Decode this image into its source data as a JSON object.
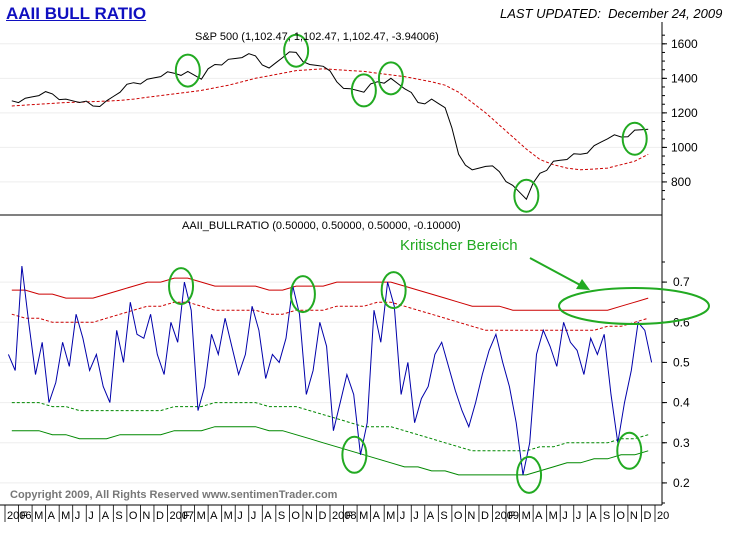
{
  "header": {
    "title": "AAII BULL RATIO",
    "last_updated_label": "LAST UPDATED:",
    "last_updated_date": "December 24, 2009"
  },
  "copyright": "Copyright 2009, All Rights Reserved   www.sentimenTrader.com",
  "annotation": {
    "text": "Kritischer Bereich"
  },
  "colors": {
    "price": "#000000",
    "moving_average": "#cc0000",
    "ratio": "#0000aa",
    "upper_band": "#cc0000",
    "lower_band": "#008800",
    "highlight": "#22aa22",
    "annotation_text": "#22aa22"
  },
  "chart_data": [
    {
      "type": "line",
      "title": "S&P 500 (1,102.47, 1,102.47, 1,102.47, -3.94006)",
      "ylim": [
        620,
        1680
      ],
      "y_ticks": [
        800,
        1000,
        1200,
        1400,
        1600
      ],
      "axis_side": "right",
      "x": [
        "2006-01",
        "2006-02",
        "2006-03",
        "2006-04",
        "2006-05",
        "2006-06",
        "2006-07",
        "2006-08",
        "2006-09",
        "2006-10",
        "2006-11",
        "2006-12",
        "2007-01",
        "2007-02",
        "2007-03",
        "2007-04",
        "2007-05",
        "2007-06",
        "2007-07",
        "2007-08",
        "2007-09",
        "2007-10",
        "2007-11",
        "2007-12",
        "2008-01",
        "2008-02",
        "2008-03",
        "2008-04",
        "2008-05",
        "2008-06",
        "2008-07",
        "2008-08",
        "2008-09",
        "2008-10",
        "2008-11",
        "2008-12",
        "2009-01",
        "2009-02",
        "2009-03",
        "2009-04",
        "2009-05",
        "2009-06",
        "2009-07",
        "2009-08",
        "2009-09",
        "2009-10",
        "2009-11",
        "2009-12"
      ],
      "series": [
        {
          "name": "",
          "values": [
            1270,
            1285,
            1300,
            1310,
            1280,
            1260,
            1240,
            1270,
            1320,
            1375,
            1395,
            1410,
            1430,
            1440,
            1395,
            1480,
            1510,
            1520,
            1530,
            1460,
            1520,
            1550,
            1480,
            1470,
            1380,
            1340,
            1320,
            1380,
            1400,
            1340,
            1260,
            1280,
            1230,
            960,
            870,
            890,
            860,
            780,
            700,
            850,
            920,
            930,
            960,
            1010,
            1050,
            1060,
            1100,
            1105
          ]
        },
        {
          "name": "",
          "values": [
            1240,
            1245,
            1250,
            1255,
            1260,
            1262,
            1265,
            1268,
            1272,
            1280,
            1290,
            1300,
            1310,
            1320,
            1330,
            1345,
            1360,
            1380,
            1400,
            1415,
            1430,
            1445,
            1450,
            1455,
            1450,
            1445,
            1440,
            1430,
            1420,
            1410,
            1395,
            1380,
            1360,
            1320,
            1260,
            1200,
            1130,
            1060,
            990,
            930,
            900,
            880,
            870,
            875,
            880,
            900,
            920,
            960
          ]
        }
      ],
      "highlights": [
        {
          "x": "2007-02",
          "y": 1445
        },
        {
          "x": "2007-10",
          "y": 1560
        },
        {
          "x": "2008-03",
          "y": 1330
        },
        {
          "x": "2008-05",
          "y": 1400
        },
        {
          "x": "2009-03",
          "y": 720
        },
        {
          "x": "2009-11",
          "y": 1050
        }
      ]
    },
    {
      "type": "line",
      "title": "AAII_BULLRATIO (0.50000, 0.50000, 0.50000, -0.10000)",
      "ylim": [
        0.15,
        0.75
      ],
      "y_ticks": [
        0.2,
        0.3,
        0.4,
        0.5,
        0.6,
        0.7
      ],
      "axis_side": "right",
      "x_tick_labels": [
        "2006",
        "F",
        "M",
        "A",
        "M",
        "J",
        "J",
        "A",
        "S",
        "O",
        "N",
        "D",
        "2007",
        "F",
        "M",
        "A",
        "M",
        "J",
        "J",
        "A",
        "S",
        "O",
        "N",
        "D",
        "2008",
        "F",
        "M",
        "A",
        "M",
        "J",
        "J",
        "A",
        "S",
        "O",
        "N",
        "D",
        "2009",
        "F",
        "M",
        "A",
        "M",
        "J",
        "J",
        "A",
        "S",
        "O",
        "N",
        "D",
        "20"
      ],
      "ratio_values": [
        0.52,
        0.74,
        0.47,
        0.4,
        0.55,
        0.62,
        0.48,
        0.44,
        0.58,
        0.65,
        0.56,
        0.52,
        0.6,
        0.7,
        0.38,
        0.57,
        0.61,
        0.47,
        0.64,
        0.46,
        0.5,
        0.69,
        0.42,
        0.6,
        0.33,
        0.47,
        0.27,
        0.63,
        0.7,
        0.42,
        0.35,
        0.44,
        0.55,
        0.43,
        0.34,
        0.47,
        0.57,
        0.44,
        0.22,
        0.52,
        0.54,
        0.6,
        0.53,
        0.56,
        0.57,
        0.3,
        0.48,
        0.58
      ],
      "ratio_daily": [
        0.52,
        0.48,
        0.74,
        0.6,
        0.47,
        0.55,
        0.4,
        0.45,
        0.55,
        0.49,
        0.62,
        0.56,
        0.48,
        0.52,
        0.44,
        0.4,
        0.58,
        0.5,
        0.65,
        0.57,
        0.56,
        0.62,
        0.52,
        0.47,
        0.6,
        0.55,
        0.7,
        0.63,
        0.38,
        0.44,
        0.57,
        0.52,
        0.61,
        0.54,
        0.47,
        0.52,
        0.64,
        0.58,
        0.46,
        0.52,
        0.5,
        0.56,
        0.69,
        0.62,
        0.42,
        0.48,
        0.6,
        0.54,
        0.33,
        0.4,
        0.47,
        0.42,
        0.27,
        0.35,
        0.63,
        0.55,
        0.7,
        0.64,
        0.42,
        0.5,
        0.35,
        0.41,
        0.44,
        0.52,
        0.55,
        0.49,
        0.43,
        0.38,
        0.34,
        0.4,
        0.47,
        0.53,
        0.57,
        0.5,
        0.44,
        0.35,
        0.22,
        0.3,
        0.52,
        0.58,
        0.54,
        0.49,
        0.6,
        0.55,
        0.53,
        0.47,
        0.56,
        0.52,
        0.57,
        0.42,
        0.3,
        0.4,
        0.48,
        0.6,
        0.58,
        0.5
      ],
      "upper_solid": [
        0.68,
        0.68,
        0.67,
        0.67,
        0.66,
        0.66,
        0.66,
        0.67,
        0.68,
        0.69,
        0.7,
        0.7,
        0.71,
        0.71,
        0.7,
        0.69,
        0.69,
        0.69,
        0.69,
        0.68,
        0.68,
        0.69,
        0.69,
        0.69,
        0.7,
        0.7,
        0.7,
        0.7,
        0.7,
        0.69,
        0.68,
        0.67,
        0.66,
        0.65,
        0.64,
        0.64,
        0.64,
        0.63,
        0.63,
        0.63,
        0.63,
        0.63,
        0.63,
        0.63,
        0.63,
        0.64,
        0.65,
        0.66
      ],
      "upper_dashed": [
        0.62,
        0.61,
        0.61,
        0.6,
        0.6,
        0.6,
        0.6,
        0.61,
        0.62,
        0.63,
        0.64,
        0.64,
        0.65,
        0.65,
        0.64,
        0.63,
        0.63,
        0.63,
        0.63,
        0.62,
        0.62,
        0.63,
        0.63,
        0.63,
        0.64,
        0.64,
        0.64,
        0.65,
        0.65,
        0.64,
        0.63,
        0.62,
        0.61,
        0.6,
        0.59,
        0.58,
        0.58,
        0.58,
        0.58,
        0.58,
        0.58,
        0.58,
        0.58,
        0.58,
        0.59,
        0.59,
        0.6,
        0.61
      ],
      "lower_dashed": [
        0.4,
        0.4,
        0.4,
        0.39,
        0.39,
        0.38,
        0.38,
        0.38,
        0.38,
        0.38,
        0.38,
        0.38,
        0.39,
        0.39,
        0.39,
        0.4,
        0.4,
        0.4,
        0.4,
        0.39,
        0.39,
        0.39,
        0.38,
        0.37,
        0.36,
        0.35,
        0.34,
        0.34,
        0.34,
        0.33,
        0.32,
        0.31,
        0.3,
        0.29,
        0.28,
        0.28,
        0.28,
        0.28,
        0.28,
        0.29,
        0.29,
        0.3,
        0.3,
        0.3,
        0.3,
        0.31,
        0.31,
        0.32
      ],
      "lower_solid": [
        0.33,
        0.33,
        0.33,
        0.32,
        0.32,
        0.31,
        0.31,
        0.31,
        0.32,
        0.32,
        0.32,
        0.32,
        0.33,
        0.33,
        0.33,
        0.34,
        0.34,
        0.34,
        0.34,
        0.33,
        0.33,
        0.32,
        0.31,
        0.3,
        0.29,
        0.28,
        0.27,
        0.26,
        0.25,
        0.24,
        0.24,
        0.23,
        0.23,
        0.22,
        0.22,
        0.22,
        0.22,
        0.22,
        0.22,
        0.23,
        0.24,
        0.25,
        0.25,
        0.26,
        0.26,
        0.27,
        0.27,
        0.28
      ],
      "highlights": [
        {
          "x_index": 12.5,
          "y": 0.69
        },
        {
          "x_index": 21.5,
          "y": 0.67
        },
        {
          "x_index": 25.3,
          "y": 0.27
        },
        {
          "x_index": 28.2,
          "y": 0.68
        },
        {
          "x_index": 38.2,
          "y": 0.22
        },
        {
          "x_index": 45.6,
          "y": 0.28
        }
      ]
    }
  ]
}
